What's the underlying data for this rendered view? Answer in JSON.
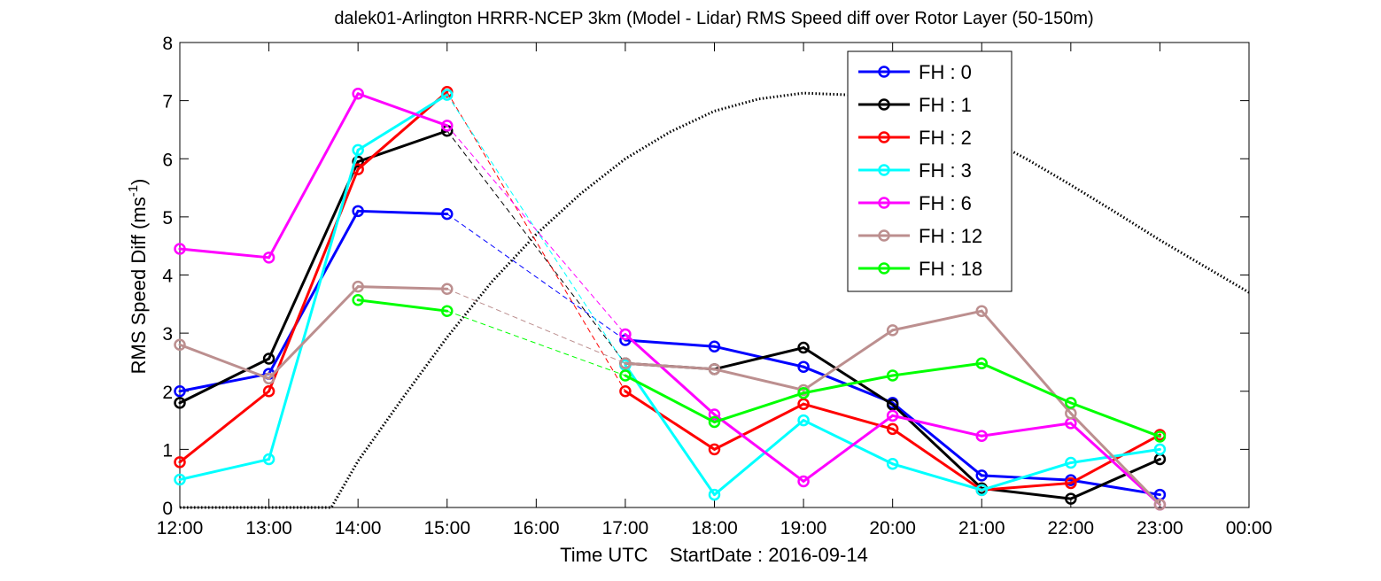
{
  "chart_data": {
    "type": "line",
    "title": "dalek01-Arlington HRRR-NCEP 3km (Model - Lidar) RMS Speed diff over Rotor Layer (50-150m)",
    "xlabel": "Time UTC    StartDate : 2016-09-14",
    "ylabel_main": "RMS Speed Diff (ms",
    "ylabel_sup": "-1",
    "ylabel_close": ")",
    "ylim": [
      0,
      8
    ],
    "yticks": [
      "0",
      "1",
      "2",
      "3",
      "4",
      "5",
      "6",
      "7",
      "8"
    ],
    "xticks": [
      "12:00",
      "13:00",
      "14:00",
      "15:00",
      "16:00",
      "17:00",
      "18:00",
      "19:00",
      "20:00",
      "21:00",
      "22:00",
      "23:00",
      "00:00"
    ],
    "legend_position": "top-right",
    "grid": false,
    "series": [
      {
        "name": "FH : 0",
        "color": "#0000ff",
        "values": [
          2.0,
          2.3,
          5.1,
          5.05,
          null,
          2.88,
          2.77,
          2.42,
          1.8,
          0.55,
          0.47,
          0.22
        ]
      },
      {
        "name": "FH : 1",
        "color": "#000000",
        "values": [
          1.8,
          2.56,
          5.95,
          6.48,
          null,
          2.48,
          2.38,
          2.75,
          1.77,
          0.33,
          0.15,
          0.83
        ]
      },
      {
        "name": "FH : 2",
        "color": "#ff0000",
        "values": [
          0.78,
          2.0,
          5.82,
          7.15,
          null,
          2.0,
          1.0,
          1.78,
          1.35,
          0.3,
          0.42,
          1.25
        ]
      },
      {
        "name": "FH : 3",
        "color": "#00ffff",
        "values": [
          0.48,
          0.83,
          6.15,
          7.1,
          null,
          2.45,
          0.22,
          1.5,
          0.75,
          0.3,
          0.77,
          1.0
        ]
      },
      {
        "name": "FH : 6",
        "color": "#ff00ff",
        "values": [
          4.45,
          4.3,
          7.12,
          6.57,
          null,
          2.98,
          1.6,
          0.45,
          1.58,
          1.23,
          1.45,
          0.05
        ]
      },
      {
        "name": "FH : 12",
        "color": "#bc8f8f",
        "values": [
          2.8,
          2.22,
          3.8,
          3.76,
          null,
          2.48,
          2.38,
          2.02,
          3.05,
          3.38,
          1.62,
          0.05
        ]
      },
      {
        "name": "FH : 18",
        "color": "#00ff00",
        "values": [
          null,
          null,
          3.57,
          3.38,
          null,
          2.27,
          1.47,
          1.97,
          2.27,
          2.48,
          1.8,
          1.22
        ]
      }
    ],
    "dotted_curve": {
      "color": "#000000",
      "x": [
        0,
        0.5,
        1.0,
        1.5,
        1.7,
        2.0,
        2.5,
        3.0,
        3.5,
        4.0,
        4.5,
        5.0,
        5.5,
        6.0,
        6.5,
        7.0,
        7.5,
        8.0,
        8.5,
        9.0,
        9.5,
        10.0,
        10.5,
        11.0,
        11.5,
        12.0
      ],
      "y": [
        0,
        0,
        0,
        0,
        0,
        0.8,
        1.88,
        2.93,
        3.88,
        4.7,
        5.4,
        6.0,
        6.46,
        6.82,
        7.03,
        7.13,
        7.1,
        6.96,
        6.73,
        6.4,
        6.0,
        5.55,
        5.08,
        4.6,
        4.15,
        3.7
      ]
    }
  }
}
